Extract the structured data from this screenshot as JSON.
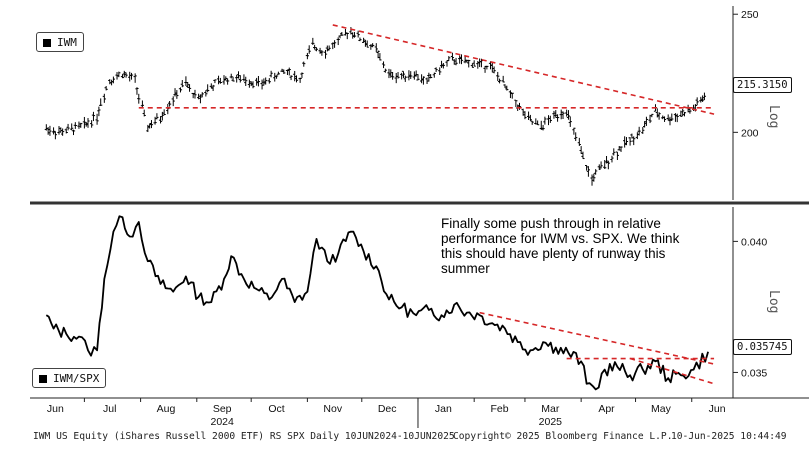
{
  "chart_data": [
    {
      "type": "ohlc",
      "legend": "IWM",
      "yaxis_label": "Log",
      "yticks": [
        200,
        250
      ],
      "ylim": [
        176,
        252
      ],
      "last_price_tag": "215.3150",
      "last_price": 215.315,
      "series_color": "#000000",
      "trendline_color": "#d62728",
      "series": [
        {
          "name": "IWM",
          "points": [
            [
              "2024-06-10",
              201.5
            ],
            [
              "2024-06-17",
              200.2
            ],
            [
              "2024-06-24",
              201.0
            ],
            [
              "2024-07-01",
              202.5
            ],
            [
              "2024-07-08",
              206.0
            ],
            [
              "2024-07-15",
              220.5
            ],
            [
              "2024-07-22",
              223.5
            ],
            [
              "2024-07-29",
              221.0
            ],
            [
              "2024-08-05",
              202.0
            ],
            [
              "2024-08-12",
              205.5
            ],
            [
              "2024-08-19",
              213.0
            ],
            [
              "2024-08-26",
              219.5
            ],
            [
              "2024-09-02",
              213.0
            ],
            [
              "2024-09-09",
              218.0
            ],
            [
              "2024-09-16",
              221.0
            ],
            [
              "2024-09-23",
              222.0
            ],
            [
              "2024-09-30",
              220.5
            ],
            [
              "2024-10-07",
              219.0
            ],
            [
              "2024-10-14",
              222.5
            ],
            [
              "2024-10-21",
              224.5
            ],
            [
              "2024-10-28",
              221.0
            ],
            [
              "2024-11-04",
              236.0
            ],
            [
              "2024-11-11",
              233.0
            ],
            [
              "2024-11-18",
              237.5
            ],
            [
              "2024-11-25",
              242.5
            ],
            [
              "2024-12-02",
              238.0
            ],
            [
              "2024-12-09",
              234.0
            ],
            [
              "2024-12-16",
              223.0
            ],
            [
              "2024-12-23",
              222.5
            ],
            [
              "2024-12-30",
              223.5
            ],
            [
              "2025-01-06",
              220.0
            ],
            [
              "2025-01-13",
              225.5
            ],
            [
              "2025-01-20",
              229.5
            ],
            [
              "2025-01-27",
              228.5
            ],
            [
              "2025-02-03",
              227.5
            ],
            [
              "2025-02-10",
              227.0
            ],
            [
              "2025-02-17",
              219.5
            ],
            [
              "2025-02-24",
              212.0
            ],
            [
              "2025-03-03",
              205.0
            ],
            [
              "2025-03-10",
              202.0
            ],
            [
              "2025-03-17",
              206.0
            ],
            [
              "2025-03-24",
              208.5
            ],
            [
              "2025-03-31",
              195.0
            ],
            [
              "2025-04-07",
              183.0
            ],
            [
              "2025-04-14",
              188.0
            ],
            [
              "2025-04-21",
              193.0
            ],
            [
              "2025-04-28",
              197.0
            ],
            [
              "2025-05-05",
              201.0
            ],
            [
              "2025-05-12",
              208.0
            ],
            [
              "2025-05-19",
              205.0
            ],
            [
              "2025-05-26",
              207.0
            ],
            [
              "2025-06-02",
              209.0
            ],
            [
              "2025-06-10",
              215.3
            ]
          ]
        }
      ],
      "trendlines": [
        {
          "from": [
            "2024-11-15",
            245.0
          ],
          "to": [
            "2025-06-10",
            207.0
          ]
        },
        {
          "from": [
            "2024-07-31",
            209.5
          ],
          "to": [
            "2025-06-10",
            209.5
          ]
        }
      ]
    },
    {
      "type": "line",
      "legend": "IWM/SPX",
      "yaxis_label": "Log",
      "yticks": [
        0.035,
        0.04
      ],
      "ylim": [
        0.0341,
        0.0413
      ],
      "last_price_tag": "0.035745",
      "last_price": 0.035745,
      "annotation": "Finally some push through in relative performance for IWM vs. SPX. We think this should have plenty of runway this summer",
      "series_color": "#000000",
      "trendline_color": "#d62728",
      "series": [
        {
          "name": "IWM/SPX",
          "points": [
            [
              "2024-06-10",
              0.0371
            ],
            [
              "2024-06-14",
              0.0366
            ],
            [
              "2024-06-21",
              0.0364
            ],
            [
              "2024-06-28",
              0.0363
            ],
            [
              "2024-07-03",
              0.0358
            ],
            [
              "2024-07-08",
              0.0358
            ],
            [
              "2024-07-12",
              0.0385
            ],
            [
              "2024-07-17",
              0.0404
            ],
            [
              "2024-07-22",
              0.041
            ],
            [
              "2024-07-26",
              0.0402
            ],
            [
              "2024-07-31",
              0.0408
            ],
            [
              "2024-08-05",
              0.0392
            ],
            [
              "2024-08-12",
              0.0383
            ],
            [
              "2024-08-19",
              0.038
            ],
            [
              "2024-08-26",
              0.0386
            ],
            [
              "2024-09-02",
              0.0378
            ],
            [
              "2024-09-09",
              0.0376
            ],
            [
              "2024-09-16",
              0.0385
            ],
            [
              "2024-09-20",
              0.0394
            ],
            [
              "2024-09-27",
              0.0385
            ],
            [
              "2024-10-04",
              0.0381
            ],
            [
              "2024-10-11",
              0.0377
            ],
            [
              "2024-10-18",
              0.0385
            ],
            [
              "2024-10-25",
              0.0376
            ],
            [
              "2024-11-01",
              0.038
            ],
            [
              "2024-11-06",
              0.0401
            ],
            [
              "2024-11-12",
              0.0392
            ],
            [
              "2024-11-18",
              0.0395
            ],
            [
              "2024-11-25",
              0.0404
            ],
            [
              "2024-12-02",
              0.0396
            ],
            [
              "2024-12-09",
              0.039
            ],
            [
              "2024-12-16",
              0.0377
            ],
            [
              "2024-12-23",
              0.0374
            ],
            [
              "2024-12-31",
              0.0371
            ],
            [
              "2025-01-07",
              0.0373
            ],
            [
              "2025-01-14",
              0.0371
            ],
            [
              "2025-01-21",
              0.0375
            ],
            [
              "2025-01-28",
              0.0372
            ],
            [
              "2025-02-04",
              0.0371
            ],
            [
              "2025-02-11",
              0.0368
            ],
            [
              "2025-02-18",
              0.0366
            ],
            [
              "2025-02-25",
              0.0361
            ],
            [
              "2025-03-04",
              0.0358
            ],
            [
              "2025-03-11",
              0.0361
            ],
            [
              "2025-03-18",
              0.0359
            ],
            [
              "2025-03-25",
              0.0357
            ],
            [
              "2025-04-01",
              0.0354
            ],
            [
              "2025-04-04",
              0.0346
            ],
            [
              "2025-04-09",
              0.0344
            ],
            [
              "2025-04-14",
              0.0351
            ],
            [
              "2025-04-21",
              0.0352
            ],
            [
              "2025-04-28",
              0.0349
            ],
            [
              "2025-05-05",
              0.0351
            ],
            [
              "2025-05-12",
              0.0354
            ],
            [
              "2025-05-19",
              0.0348
            ],
            [
              "2025-05-26",
              0.0349
            ],
            [
              "2025-06-02",
              0.0351
            ],
            [
              "2025-06-10",
              0.035745
            ]
          ]
        }
      ],
      "trendlines": [
        {
          "from": [
            "2025-02-04",
            0.0372
          ],
          "to": [
            "2025-06-10",
            0.0353
          ]
        },
        {
          "from": [
            "2025-03-24",
            0.0355
          ],
          "to": [
            "2025-06-10",
            0.0355
          ]
        },
        {
          "from": [
            "2025-04-28",
            0.0355
          ],
          "to": [
            "2025-06-10",
            0.0346
          ]
        }
      ]
    }
  ],
  "x_axis": {
    "month_labels": [
      {
        "label": "Jun",
        "date": "2024-06-15"
      },
      {
        "label": "Jul",
        "date": "2024-07-15"
      },
      {
        "label": "Aug",
        "date": "2024-08-15"
      },
      {
        "label": "Sep",
        "date": "2024-09-15"
      },
      {
        "label": "Oct",
        "date": "2024-10-15"
      },
      {
        "label": "Nov",
        "date": "2024-11-15"
      },
      {
        "label": "Dec",
        "date": "2024-12-15"
      },
      {
        "label": "Jan",
        "date": "2025-01-15"
      },
      {
        "label": "Feb",
        "date": "2025-02-15"
      },
      {
        "label": "Mar",
        "date": "2025-03-15"
      },
      {
        "label": "Apr",
        "date": "2025-04-15"
      },
      {
        "label": "May",
        "date": "2025-05-15"
      },
      {
        "label": "Jun",
        "date": "2025-06-15"
      }
    ],
    "year_labels": [
      {
        "label": "2024",
        "date": "2024-09-15"
      },
      {
        "label": "2025",
        "date": "2025-03-15"
      }
    ],
    "xlim": [
      "2024-06-01",
      "2025-06-21"
    ]
  },
  "footer": {
    "left": "IWM US Equity (iShares Russell 2000 ETF) RS SPX  Daily 10JUN2024-10JUN2025",
    "middle": "Copyright© 2025 Bloomberg Finance L.P.",
    "right": "10-Jun-2025 10:44:49"
  }
}
